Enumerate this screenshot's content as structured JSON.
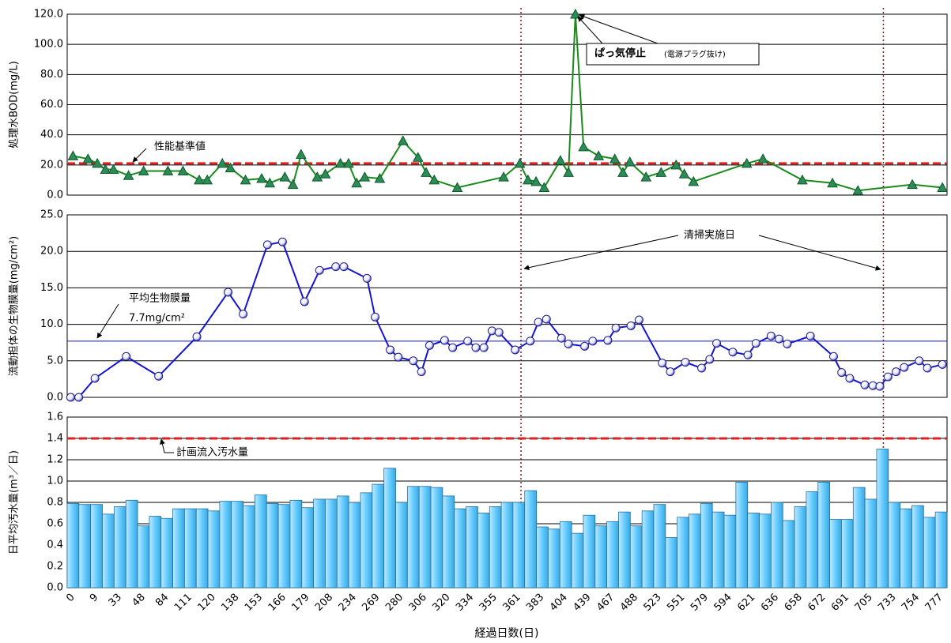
{
  "chart_data": [
    {
      "type": "line",
      "y_label": "処理水BOD(mg/L)",
      "color": "#1a8a1a",
      "marker_color": "#2e8b57",
      "marker": "triangle",
      "xlim": [
        0,
        760
      ],
      "ylim": [
        0,
        120
      ],
      "yticks": [
        {
          "value": 0,
          "label": "0.0"
        },
        {
          "value": 20,
          "label": "20.0"
        },
        {
          "value": 40,
          "label": "40.0"
        },
        {
          "value": 60,
          "label": "60.0"
        },
        {
          "value": 80,
          "label": "80.0"
        },
        {
          "value": 100,
          "label": "100.0"
        },
        {
          "value": 120,
          "label": "120.0"
        }
      ],
      "grid": true,
      "ref_line": 21,
      "ref_color": "#e02020",
      "ref_label": "性能基準値",
      "annotation": "ぱっ気停止",
      "annotation_sub": "(電源プラグ抜け)",
      "x": [
        5,
        18,
        26,
        33,
        40,
        53,
        66,
        87,
        100,
        114,
        121,
        134,
        141,
        154,
        168,
        175,
        188,
        195,
        202,
        216,
        223,
        236,
        243,
        250,
        257,
        270,
        290,
        303,
        310,
        317,
        337,
        377,
        391,
        398,
        405,
        412,
        426,
        433,
        439,
        446,
        459,
        473,
        480,
        486,
        500,
        513,
        526,
        533,
        541,
        587,
        601,
        635,
        661,
        683,
        730,
        756
      ],
      "values": [
        26,
        24,
        21,
        17,
        17,
        13,
        16,
        16,
        16,
        10,
        10,
        21,
        18,
        10,
        11,
        8,
        12,
        7,
        27,
        12,
        14,
        21,
        21,
        8,
        12,
        11,
        36,
        25,
        15,
        10,
        5,
        12,
        21,
        10,
        9,
        5,
        23,
        15,
        120,
        32,
        26,
        24,
        15,
        22,
        12,
        15,
        20,
        14,
        9,
        21,
        24,
        10,
        8,
        3,
        7,
        5
      ]
    },
    {
      "type": "line",
      "y_label": "流動担体の生物膜量(mg/cm²)",
      "color": "#1414d2",
      "marker_color": "#ffffff",
      "marker": "circle",
      "xlim": [
        0,
        760
      ],
      "ylim": [
        0,
        25
      ],
      "yticks": [
        {
          "value": 0,
          "label": "0.0"
        },
        {
          "value": 5,
          "label": "5.0"
        },
        {
          "value": 10,
          "label": "10.0"
        },
        {
          "value": 15,
          "label": "15.0"
        },
        {
          "value": 20,
          "label": "20.0"
        },
        {
          "value": 25,
          "label": "25.0"
        }
      ],
      "grid": true,
      "ref_line": 7.7,
      "ref_color": "#1414d2",
      "ref_label": "平均生物膜量",
      "ref_value_label": "7.7mg/cm²",
      "vlines": [
        392,
        705
      ],
      "vline_label": "清掃実施日",
      "x": [
        3,
        10,
        24,
        51,
        79,
        112,
        139,
        152,
        173,
        186,
        205,
        218,
        232,
        239,
        259,
        266,
        279,
        286,
        299,
        306,
        313,
        326,
        333,
        346,
        353,
        360,
        367,
        373,
        387,
        400,
        407,
        414,
        427,
        433,
        447,
        454,
        467,
        474,
        487,
        494,
        514,
        521,
        534,
        548,
        555,
        561,
        575,
        588,
        595,
        608,
        615,
        622,
        642,
        662,
        669,
        676,
        689,
        696,
        702,
        709,
        716,
        723,
        736,
        743,
        756
      ],
      "values": [
        0,
        0,
        2.6,
        5.6,
        2.9,
        8.3,
        14.4,
        11.4,
        20.9,
        21.3,
        13.1,
        17.4,
        17.9,
        17.9,
        16.3,
        11,
        6.5,
        5.5,
        5,
        3.5,
        7.1,
        7.8,
        6.8,
        7.7,
        6.8,
        6.8,
        9.1,
        8.9,
        6.5,
        7.7,
        10.3,
        10.7,
        8.1,
        7.3,
        7,
        7.7,
        7.8,
        9.5,
        9.8,
        10.6,
        4.7,
        3.5,
        4.8,
        4,
        5.2,
        7.4,
        6.2,
        5.8,
        7.4,
        8.4,
        8,
        7.3,
        8.4,
        5.6,
        3.4,
        2.6,
        1.7,
        1.6,
        1.5,
        2.8,
        3.5,
        4.1,
        5,
        4,
        4.5
      ]
    },
    {
      "type": "bar",
      "y_label": "日平均汚水量(m³／日)",
      "x_label": "経過日数(日)",
      "color": "#66ccff",
      "edge_color": "#1f6fa8",
      "ylim": [
        0,
        1.6
      ],
      "yticks": [
        {
          "value": 0,
          "label": "0.0"
        },
        0.2,
        0.4,
        0.6,
        0.8,
        {
          "value": 1,
          "label": "1.0"
        },
        1.2,
        1.4,
        1.6
      ],
      "grid": true,
      "ref_line": 1.4,
      "ref_color": "#e02020",
      "ref_label": "計画流入汚水量",
      "categories": [
        "0",
        null,
        "9",
        null,
        "33",
        null,
        "48",
        null,
        "84",
        null,
        "111",
        null,
        "120",
        null,
        "138",
        null,
        "153",
        null,
        "166",
        null,
        "179",
        null,
        "208",
        null,
        "234",
        null,
        "269",
        null,
        "280",
        null,
        "306",
        null,
        "320",
        null,
        "334",
        null,
        "355",
        null,
        "361",
        null,
        "383",
        null,
        "404",
        null,
        "439",
        null,
        "467",
        null,
        "488",
        null,
        "523",
        null,
        "551",
        null,
        "579",
        null,
        "594",
        null,
        "621",
        null,
        "636",
        null,
        "658",
        null,
        "672",
        null,
        "691",
        null,
        "705",
        null,
        "733",
        null,
        "754",
        null,
        "777"
      ],
      "values": [
        0.79,
        0.78,
        0.78,
        0.69,
        0.76,
        0.82,
        0.58,
        0.67,
        0.65,
        0.74,
        0.74,
        0.74,
        0.72,
        0.81,
        0.81,
        0.77,
        0.87,
        0.79,
        0.78,
        0.82,
        0.75,
        0.83,
        0.83,
        0.86,
        0.8,
        0.89,
        0.97,
        1.12,
        0.8,
        0.95,
        0.95,
        0.94,
        0.86,
        0.74,
        0.76,
        0.7,
        0.76,
        0.8,
        0.8,
        0.91,
        0.57,
        0.55,
        0.62,
        0.51,
        0.68,
        0.58,
        0.62,
        0.71,
        0.58,
        0.72,
        0.78,
        0.47,
        0.66,
        0.69,
        0.79,
        0.71,
        0.68,
        0.99,
        0.7,
        0.69,
        0.8,
        0.63,
        0.76,
        0.9,
        0.99,
        0.64,
        0.64,
        0.94,
        0.83,
        1.3,
        0.8,
        0.74,
        0.77,
        0.66,
        0.71
      ]
    }
  ]
}
